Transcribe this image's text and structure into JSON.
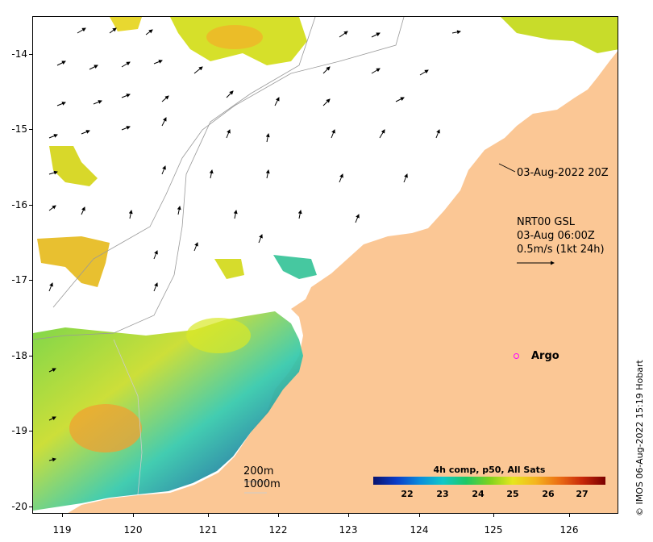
{
  "map": {
    "y_ticks": [
      "-14",
      "-15",
      "-16",
      "-17",
      "-18",
      "-19",
      "-20"
    ],
    "x_ticks": [
      "119",
      "120",
      "121",
      "122",
      "123",
      "124",
      "125",
      "126"
    ],
    "land_color": "#fbc795",
    "ocean_color": "#ffffff"
  },
  "annotations": {
    "timestamp": "03-Aug-2022 20Z",
    "nrt_line1": "NRT00 GSL",
    "nrt_line2": "03-Aug 06:00Z",
    "nrt_line3": "0.5m/s (1kt 24h)",
    "isobath_200": "200m",
    "isobath_1000": "1000m",
    "argo_label": "Argo"
  },
  "colorbar": {
    "title": "4h comp, p50, All Sats",
    "ticks": [
      "22",
      "23",
      "24",
      "25",
      "26",
      "27"
    ]
  },
  "credit": "© IMOS 06-Aug-2022 15:19 Hobart"
}
